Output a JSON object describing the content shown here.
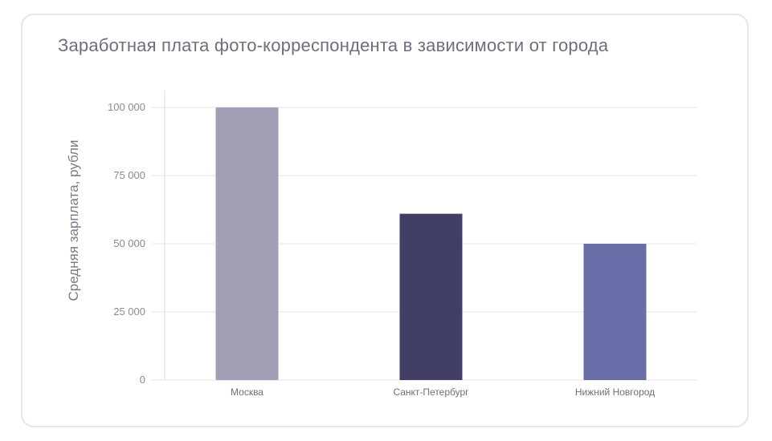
{
  "chart_data": {
    "type": "bar",
    "title": "Заработная плата фото-корреспондента в зависимости от города",
    "xlabel": "",
    "ylabel": "Средняя зарплата, рубли",
    "categories": [
      "Москва",
      "Санкт-Петербург",
      "Нижний Новгород"
    ],
    "values": [
      100000,
      61000,
      50000
    ],
    "colors": [
      "#a09fb4",
      "#413f66",
      "#6a6ea8"
    ],
    "ylim": [
      0,
      100000
    ],
    "yticks": [
      0,
      25000,
      50000,
      75000,
      100000
    ],
    "ytick_labels": [
      "0",
      "25 000",
      "50 000",
      "75 000",
      "100 000"
    ],
    "grid": true,
    "legend": "none"
  }
}
